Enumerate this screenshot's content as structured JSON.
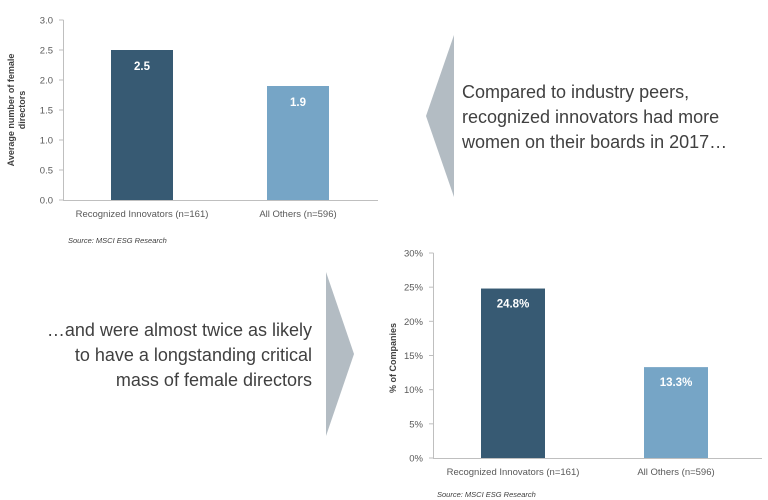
{
  "chart_data": [
    {
      "type": "bar",
      "title": "",
      "xlabel": "",
      "ylabel": "Average number of female directors",
      "ylabel_lines": [
        "Average number of female",
        "directors"
      ],
      "categories": [
        "Recognized Innovators (n=161)",
        "All Others (n=596)"
      ],
      "values": [
        2.5,
        1.9
      ],
      "data_labels": [
        "2.5",
        "1.9"
      ],
      "bar_colors": [
        "#375a73",
        "#76a5c6"
      ],
      "ylim": [
        0,
        3
      ],
      "ytick_labels": [
        "0.0",
        "0.5",
        "1.0",
        "1.5",
        "2.0",
        "2.5",
        "3.0"
      ],
      "source": "Source: MSCI ESG Research"
    },
    {
      "type": "bar",
      "title": "",
      "xlabel": "",
      "ylabel": "% of Companies",
      "categories": [
        "Recognized Innovators (n=161)",
        "All Others (n=596)"
      ],
      "values": [
        24.8,
        13.3
      ],
      "data_labels": [
        "24.8%",
        "13.3%"
      ],
      "bar_colors": [
        "#375a73",
        "#76a5c6"
      ],
      "ylim": [
        0,
        30
      ],
      "ytick_labels": [
        "0%",
        "5%",
        "10%",
        "15%",
        "20%",
        "25%",
        "30%"
      ],
      "source": "Source: MSCI ESG Research"
    }
  ],
  "callouts": {
    "top": [
      "Compared to industry peers,",
      "recognized innovators had more",
      "women on their boards in 2017…"
    ],
    "bottom": [
      "…and were almost twice as likely",
      "to have a longstanding critical",
      "mass of female directors"
    ]
  },
  "colors": {
    "arrow": "#b3bcc3",
    "axis": "#bfbfbf",
    "text": "#404040"
  }
}
